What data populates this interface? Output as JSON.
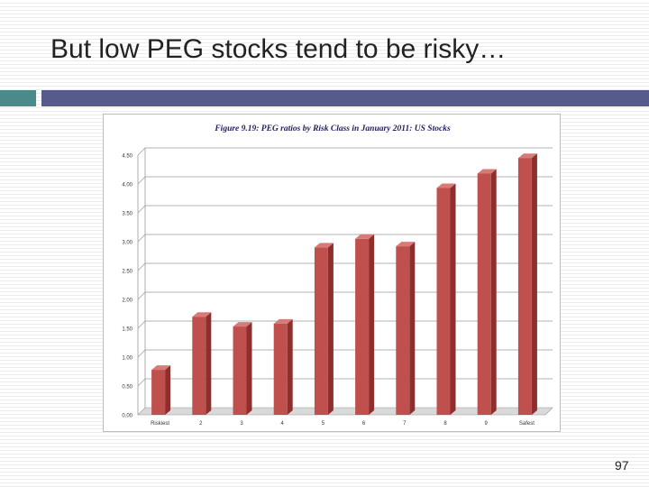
{
  "slide": {
    "title": "But low PEG stocks tend to be risky…",
    "page_number": "97"
  },
  "colors": {
    "accent_teal": "#4a8a8a",
    "accent_navy": "#565a8c",
    "bar_fill": "#c0504d"
  },
  "chart_data": {
    "type": "bar",
    "title": "Figure 9.19: PEG ratios by Risk Class in January 2011: US Stocks",
    "categories": [
      "Riskiest",
      "2",
      "3",
      "4",
      "5",
      "6",
      "7",
      "8",
      "9",
      "Safest"
    ],
    "values": [
      0.78,
      1.7,
      1.53,
      1.58,
      2.9,
      3.05,
      2.92,
      3.93,
      4.18,
      4.45
    ],
    "ylim": [
      0,
      4.5
    ],
    "yticks": [
      "0.00",
      "0.50",
      "1.00",
      "1.50",
      "2.00",
      "2.50",
      "3.00",
      "3.50",
      "4.00",
      "4.50"
    ],
    "grid": true,
    "style": "3d"
  }
}
